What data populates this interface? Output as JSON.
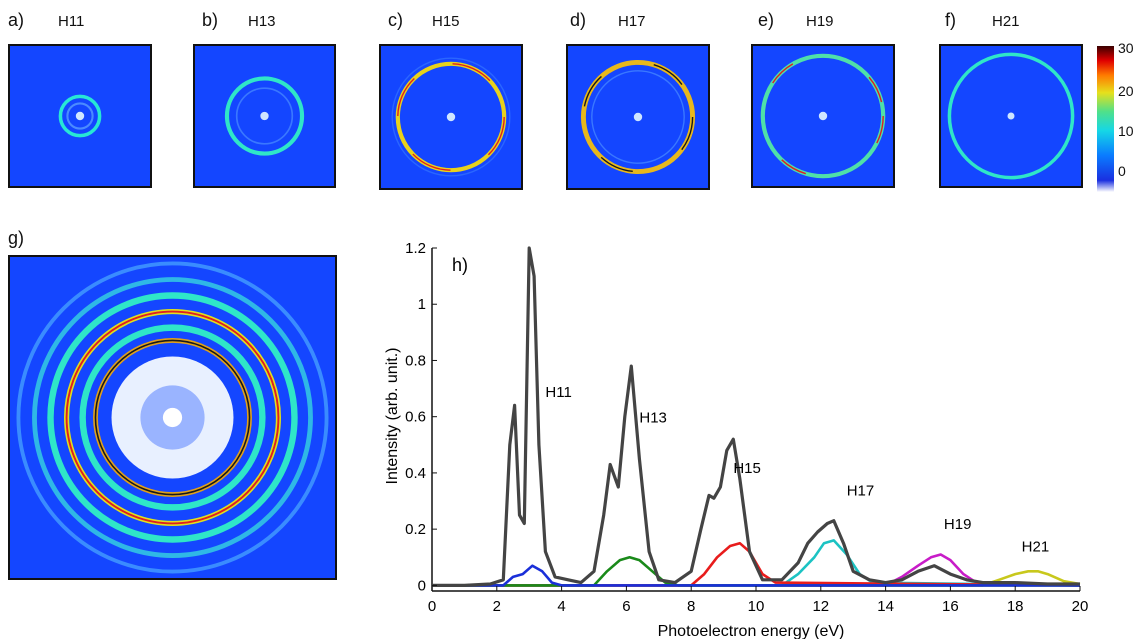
{
  "panels": [
    {
      "letter": "a)",
      "harmonic": "H11"
    },
    {
      "letter": "b)",
      "harmonic": "H13"
    },
    {
      "letter": "c)",
      "harmonic": "H15"
    },
    {
      "letter": "d)",
      "harmonic": "H17"
    },
    {
      "letter": "e)",
      "harmonic": "H19"
    },
    {
      "letter": "f)",
      "harmonic": "H21"
    }
  ],
  "panel_g_label": "g)",
  "colorbar": {
    "ticks": [
      "30",
      "20",
      "10",
      "0"
    ]
  },
  "chart_data": {
    "type": "line",
    "panel_label": "h)",
    "xlabel": "Photoelectron energy (eV)",
    "ylabel": "Intensity (arb. unit.)",
    "xlim": [
      0,
      20
    ],
    "ylim": [
      -0.02,
      1.2
    ],
    "xticks": [
      "0",
      "2",
      "4",
      "6",
      "8",
      "10",
      "12",
      "14",
      "16",
      "18",
      "20"
    ],
    "yticks": [
      "0",
      "0.2",
      "0.4",
      "0.6",
      "0.8",
      "1",
      "1.2"
    ],
    "annotations": [
      {
        "text": "H11",
        "x": 3.5,
        "y": 0.67
      },
      {
        "text": "H13",
        "x": 6.4,
        "y": 0.58
      },
      {
        "text": "H15",
        "x": 9.3,
        "y": 0.4
      },
      {
        "text": "H17",
        "x": 12.8,
        "y": 0.32
      },
      {
        "text": "H19",
        "x": 15.8,
        "y": 0.2
      },
      {
        "text": "H21",
        "x": 18.2,
        "y": 0.12
      }
    ],
    "series": [
      {
        "color": "#444444",
        "x": [
          0,
          1,
          1.8,
          2.2,
          2.4,
          2.55,
          2.7,
          2.85,
          3.0,
          3.15,
          3.3,
          3.5,
          3.8,
          4.2,
          4.6,
          5.0,
          5.3,
          5.5,
          5.75,
          5.95,
          6.15,
          6.4,
          6.7,
          7.0,
          7.5,
          8.0,
          8.3,
          8.55,
          8.7,
          8.9,
          9.1,
          9.3,
          9.5,
          9.8,
          10.2,
          10.8,
          11.3,
          11.6,
          11.9,
          12.2,
          12.4,
          12.7,
          13.0,
          13.5,
          14.0,
          14.5,
          15.0,
          15.5,
          16.0,
          16.5,
          17.0,
          18.0,
          19.0,
          20.0
        ],
        "y": [
          0,
          0,
          0.005,
          0.02,
          0.5,
          0.64,
          0.25,
          0.22,
          1.2,
          1.1,
          0.5,
          0.12,
          0.03,
          0.02,
          0.01,
          0.05,
          0.25,
          0.43,
          0.35,
          0.6,
          0.78,
          0.45,
          0.12,
          0.02,
          0.01,
          0.05,
          0.2,
          0.32,
          0.31,
          0.35,
          0.48,
          0.52,
          0.38,
          0.12,
          0.02,
          0.02,
          0.08,
          0.15,
          0.19,
          0.22,
          0.23,
          0.15,
          0.05,
          0.02,
          0.01,
          0.02,
          0.05,
          0.07,
          0.04,
          0.02,
          0.01,
          0.01,
          0.005,
          0.005
        ]
      },
      {
        "color": "#1a2fd9",
        "x": [
          0,
          2.2,
          2.5,
          2.8,
          3.1,
          3.4,
          3.7,
          4.0,
          20
        ],
        "y": [
          0,
          0,
          0.03,
          0.04,
          0.07,
          0.05,
          0.01,
          0,
          0
        ]
      },
      {
        "color": "#1a8a1a",
        "x": [
          0,
          5.0,
          5.4,
          5.8,
          6.1,
          6.4,
          6.8,
          7.2,
          7.6,
          20
        ],
        "y": [
          0,
          0,
          0.05,
          0.09,
          0.1,
          0.09,
          0.05,
          0.01,
          0,
          0
        ]
      },
      {
        "color": "#e81c1c",
        "x": [
          0,
          8.0,
          8.4,
          8.8,
          9.2,
          9.5,
          9.8,
          10.2,
          10.6,
          20
        ],
        "y": [
          0,
          0,
          0.04,
          0.1,
          0.14,
          0.15,
          0.12,
          0.04,
          0.01,
          0
        ]
      },
      {
        "color": "#1cc3c3",
        "x": [
          0,
          10.8,
          11.3,
          11.8,
          12.1,
          12.4,
          12.8,
          13.2,
          13.6,
          20
        ],
        "y": [
          0,
          0,
          0.04,
          0.1,
          0.15,
          0.16,
          0.11,
          0.04,
          0.01,
          0
        ]
      },
      {
        "color": "#c81cc8",
        "x": [
          0,
          14.0,
          14.5,
          15.0,
          15.4,
          15.7,
          16.0,
          16.4,
          16.8,
          20
        ],
        "y": [
          0,
          0,
          0.03,
          0.07,
          0.1,
          0.11,
          0.09,
          0.04,
          0.01,
          0
        ]
      },
      {
        "color": "#c8c81c",
        "x": [
          0,
          17.0,
          17.5,
          18.0,
          18.4,
          18.7,
          19.0,
          19.5,
          20
        ],
        "y": [
          0,
          0,
          0.02,
          0.04,
          0.05,
          0.05,
          0.04,
          0.015,
          0.005
        ]
      }
    ]
  }
}
